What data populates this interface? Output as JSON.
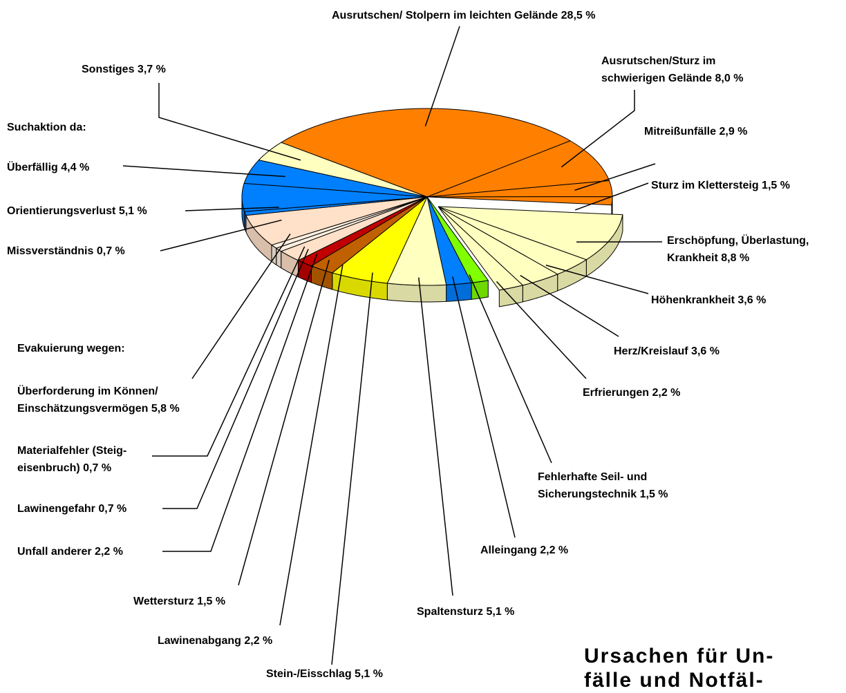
{
  "chart_data": {
    "type": "pie3d",
    "title_lines": [
      "Ursachen für Un-",
      "fälle und Notfäl-"
    ],
    "annotations": [
      "Suchaktion da:",
      "Evakuierung wegen:"
    ],
    "categories": [
      "Ausrutschen/ Stolpern im leichten Gelände",
      "Ausrutschen/Sturz im\nschwierigen Gelände",
      "Mitreißunfälle",
      "Sturz im Klettersteig",
      "Erschöpfung, Überlastung,\nKrankheit",
      "Höhenkrankheit",
      "Herz/Kreislauf",
      "Erfrierungen",
      "Fehlerhafte Seil- und\nSicherungstechnik",
      "Alleingang",
      "Spaltensturz",
      "Stein-/Eisschlag",
      "Lawinenabgang",
      "Wettersturz",
      "Unfall anderer",
      "Lawinengefahr",
      "Materialfehler (Steig-\neisenbruch)",
      "Überforderung im Können/\nEinschätzungsvermögen",
      "Missverständnis",
      "Orientierungsverlust",
      "Überfällig",
      "Sonstiges"
    ],
    "values": [
      28.5,
      8.0,
      2.9,
      1.5,
      8.8,
      3.6,
      3.6,
      2.2,
      1.5,
      2.2,
      5.1,
      5.1,
      2.2,
      1.5,
      2.2,
      0.7,
      0.7,
      5.8,
      0.7,
      5.1,
      4.4,
      3.7
    ],
    "value_labels": [
      "28,5 %",
      "8,0 %",
      "2,9 %",
      "1,5 %",
      "8,8 %",
      "3,6 %",
      "3,6 %",
      "2,2 %",
      "1,5 %",
      "2,2 %",
      "5,1 %",
      "5,1 %",
      "2,2 %",
      "1,5 %",
      "2,2 %",
      "0,7 %",
      "0,7 %",
      "5,8 %",
      "0,7 %",
      "5,1 %",
      "4,4 %",
      "3,7 %"
    ],
    "colors": [
      "#ff8000",
      "#ff8000",
      "#ff8000",
      "#ff8000",
      "#ffffc0",
      "#ffffc0",
      "#ffffc0",
      "#ffffc0",
      "#80ff00",
      "#0080ff",
      "#ffffc0",
      "#ffff00",
      "#c06000",
      "#c00000",
      "#ffe0c8",
      "#fff0e0",
      "#fff0e0",
      "#ffe0c8",
      "#0080ff",
      "#0080ff",
      "#0080ff",
      "#ffffc0"
    ],
    "exploded": [
      false,
      false,
      false,
      false,
      true,
      true,
      true,
      true,
      false,
      false,
      false,
      false,
      false,
      false,
      false,
      false,
      false,
      false,
      false,
      false,
      false,
      false
    ]
  }
}
